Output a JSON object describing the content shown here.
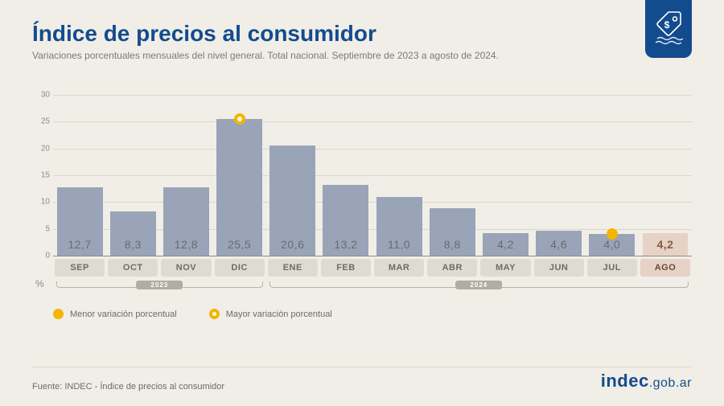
{
  "title": "Índice de precios al consumidor",
  "subtitle": "Variaciones porcentuales mensuales del nivel general. Total nacional. Septiembre de 2023 a agosto de 2024.",
  "source": "Fuente: INDEC - Índice de precios al consumidor",
  "brand_main": "indec",
  "brand_rest": ".gob.ar",
  "percent_symbol": "%",
  "chart": {
    "type": "bar",
    "ymax": 30,
    "ytick_step": 5,
    "yticks": [
      0,
      5,
      10,
      15,
      20,
      25,
      30
    ],
    "grid_color": "#d9d6cc",
    "baseline_color": "#8f8d84",
    "background_color": "#f0eee6",
    "bar_color_default": "#9aa4b8",
    "bar_color_highlight": "#e6d2c6",
    "month_pill_bg": "#dedcd2",
    "month_pill_color": "#6b6b6b",
    "month_pill_bg_highlight": "#e6d2c6",
    "month_pill_color_highlight": "#6a4a3a",
    "value_color_highlight": "#8a5a3a",
    "marker_color": "#f4b400",
    "title_color": "#134b8f",
    "bar_width_pct": 86
  },
  "data": [
    {
      "month": "SEP",
      "value": 12.7,
      "label": "12,7",
      "year_group": 0
    },
    {
      "month": "OCT",
      "value": 8.3,
      "label": "8,3",
      "year_group": 0
    },
    {
      "month": "NOV",
      "value": 12.8,
      "label": "12,8",
      "year_group": 0
    },
    {
      "month": "DIC",
      "value": 25.5,
      "label": "25,5",
      "year_group": 0,
      "marker": "max"
    },
    {
      "month": "ENE",
      "value": 20.6,
      "label": "20,6",
      "year_group": 1
    },
    {
      "month": "FEB",
      "value": 13.2,
      "label": "13,2",
      "year_group": 1
    },
    {
      "month": "MAR",
      "value": 11.0,
      "label": "11,0",
      "year_group": 1
    },
    {
      "month": "ABR",
      "value": 8.8,
      "label": "8,8",
      "year_group": 1
    },
    {
      "month": "MAY",
      "value": 4.2,
      "label": "4,2",
      "year_group": 1
    },
    {
      "month": "JUN",
      "value": 4.6,
      "label": "4,6",
      "year_group": 1
    },
    {
      "month": "JUL",
      "value": 4.0,
      "label": "4,0",
      "year_group": 1,
      "marker": "min"
    },
    {
      "month": "AGO",
      "value": 4.2,
      "label": "4,2",
      "year_group": 1,
      "highlight": true
    }
  ],
  "years": [
    {
      "label": "2023",
      "from": 0,
      "to": 3
    },
    {
      "label": "2024",
      "from": 4,
      "to": 11
    }
  ],
  "legend": {
    "min": "Menor variación porcentual",
    "max": "Mayor variación porcentual"
  }
}
